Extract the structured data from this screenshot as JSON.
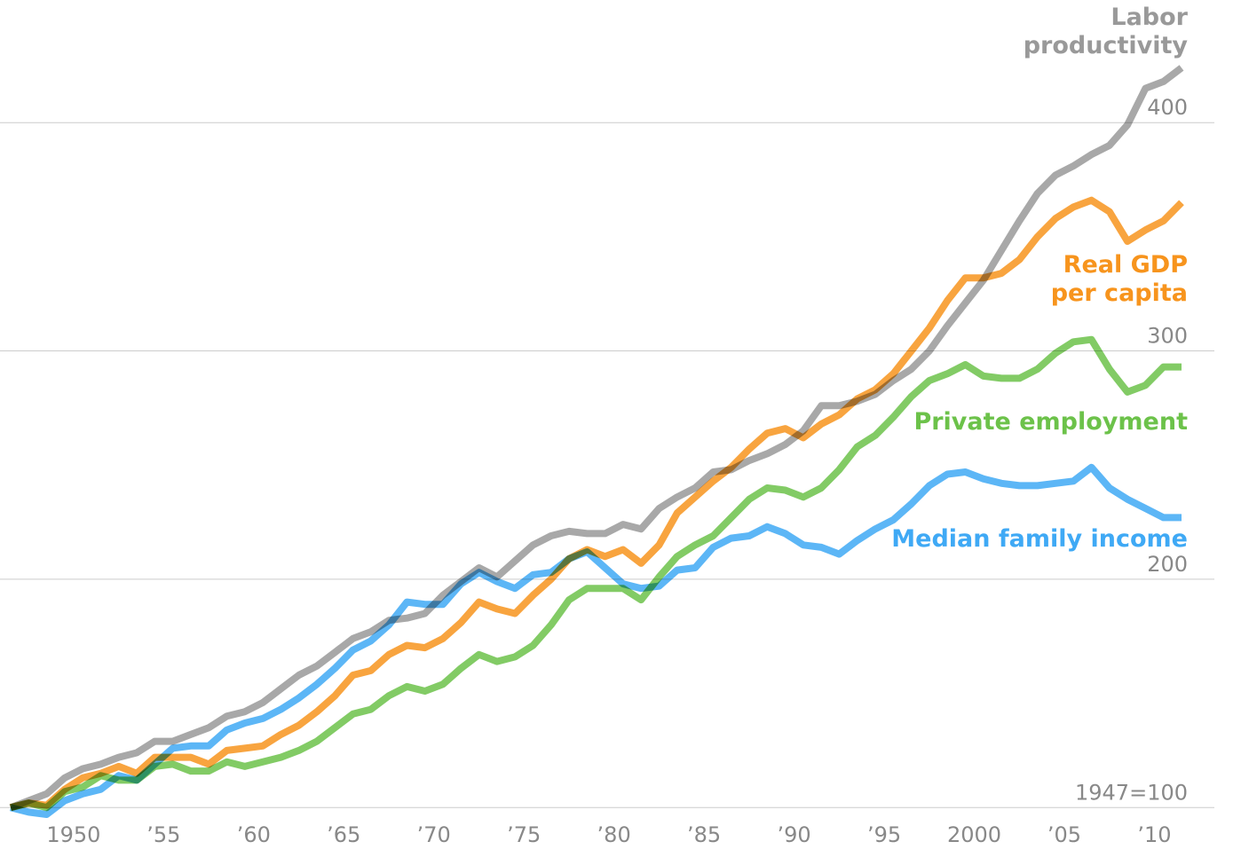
{
  "chart_data": {
    "type": "line",
    "x": [
      1947,
      1948,
      1949,
      1950,
      1951,
      1952,
      1953,
      1954,
      1955,
      1956,
      1957,
      1958,
      1959,
      1960,
      1961,
      1962,
      1963,
      1964,
      1965,
      1966,
      1967,
      1968,
      1969,
      1970,
      1971,
      1972,
      1973,
      1974,
      1975,
      1976,
      1977,
      1978,
      1979,
      1980,
      1981,
      1982,
      1983,
      1984,
      1985,
      1986,
      1987,
      1988,
      1989,
      1990,
      1991,
      1992,
      1993,
      1994,
      1995,
      1996,
      1997,
      1998,
      1999,
      2000,
      2001,
      2002,
      2003,
      2004,
      2005,
      2006,
      2007,
      2008,
      2009,
      2010,
      2011,
      2012
    ],
    "series": [
      {
        "name": "Labor productivity",
        "color": "#999999",
        "values": [
          100,
          103,
          106,
          113,
          117,
          119,
          122,
          124,
          129,
          129,
          132,
          135,
          140,
          142,
          146,
          152,
          158,
          162,
          168,
          174,
          177,
          182,
          183,
          185,
          193,
          199,
          205,
          201,
          208,
          215,
          219,
          221,
          220,
          220,
          224,
          222,
          231,
          236,
          240,
          247,
          248,
          252,
          255,
          259,
          265,
          276,
          276,
          278,
          281,
          287,
          292,
          300,
          311,
          321,
          331,
          344,
          357,
          369,
          377,
          381,
          386,
          390,
          399,
          415,
          418,
          424
        ]
      },
      {
        "name": "Real GDP per capita",
        "color": "#f7941d",
        "values": [
          100,
          102,
          101,
          108,
          113,
          115,
          118,
          115,
          122,
          122,
          122,
          119,
          125,
          126,
          127,
          132,
          136,
          142,
          149,
          158,
          160,
          167,
          171,
          170,
          174,
          181,
          190,
          187,
          185,
          193,
          200,
          209,
          213,
          210,
          213,
          207,
          215,
          229,
          236,
          243,
          249,
          257,
          264,
          266,
          262,
          268,
          272,
          279,
          283,
          290,
          300,
          310,
          322,
          332,
          332,
          334,
          340,
          350,
          358,
          363,
          366,
          361,
          348,
          353,
          357,
          365
        ]
      },
      {
        "name": "Private employment",
        "color": "#6cc24a",
        "values": [
          100,
          102,
          100,
          107,
          109,
          114,
          112,
          112,
          118,
          119,
          116,
          116,
          120,
          118,
          120,
          122,
          125,
          129,
          135,
          141,
          143,
          149,
          153,
          151,
          154,
          161,
          167,
          164,
          166,
          171,
          180,
          191,
          196,
          196,
          196,
          191,
          201,
          210,
          215,
          219,
          227,
          235,
          240,
          239,
          236,
          240,
          248,
          258,
          263,
          271,
          280,
          287,
          290,
          294,
          289,
          288,
          288,
          292,
          299,
          304,
          305,
          292,
          282,
          285,
          293,
          293
        ]
      },
      {
        "name": "Median family income",
        "color": "#3fa9f5",
        "values": [
          100,
          98,
          97,
          103,
          106,
          108,
          114,
          112,
          119,
          126,
          127,
          127,
          134,
          137,
          139,
          143,
          148,
          154,
          161,
          169,
          173,
          180,
          190,
          189,
          189,
          198,
          203,
          199,
          196,
          202,
          203,
          209,
          212,
          205,
          198,
          196,
          197,
          204,
          205,
          214,
          218,
          219,
          223,
          220,
          215,
          214,
          211,
          217,
          222,
          226,
          233,
          241,
          246,
          247,
          244,
          242,
          241,
          241,
          242,
          243,
          249,
          240,
          235,
          231,
          227,
          227
        ]
      }
    ],
    "xlim": [
      1947,
      2012
    ],
    "xticks": [
      1950,
      {
        "value": 1955,
        "label": "’55"
      },
      {
        "value": 1960,
        "label": "’60"
      },
      {
        "value": 1965,
        "label": "’65"
      },
      {
        "value": 1970,
        "label": "’70"
      },
      {
        "value": 1975,
        "label": "’75"
      },
      {
        "value": 1980,
        "label": "’80"
      },
      {
        "value": 1985,
        "label": "’85"
      },
      {
        "value": 1990,
        "label": "’90"
      },
      {
        "value": 1995,
        "label": "’95"
      },
      2000,
      {
        "value": 2005,
        "label": "’05"
      },
      {
        "value": 2010,
        "label": "’10"
      }
    ],
    "ylim": [
      90,
      430
    ],
    "yticks": [
      {
        "value": 100,
        "label": "1947=100"
      },
      200,
      300,
      400
    ],
    "grid": true
  }
}
